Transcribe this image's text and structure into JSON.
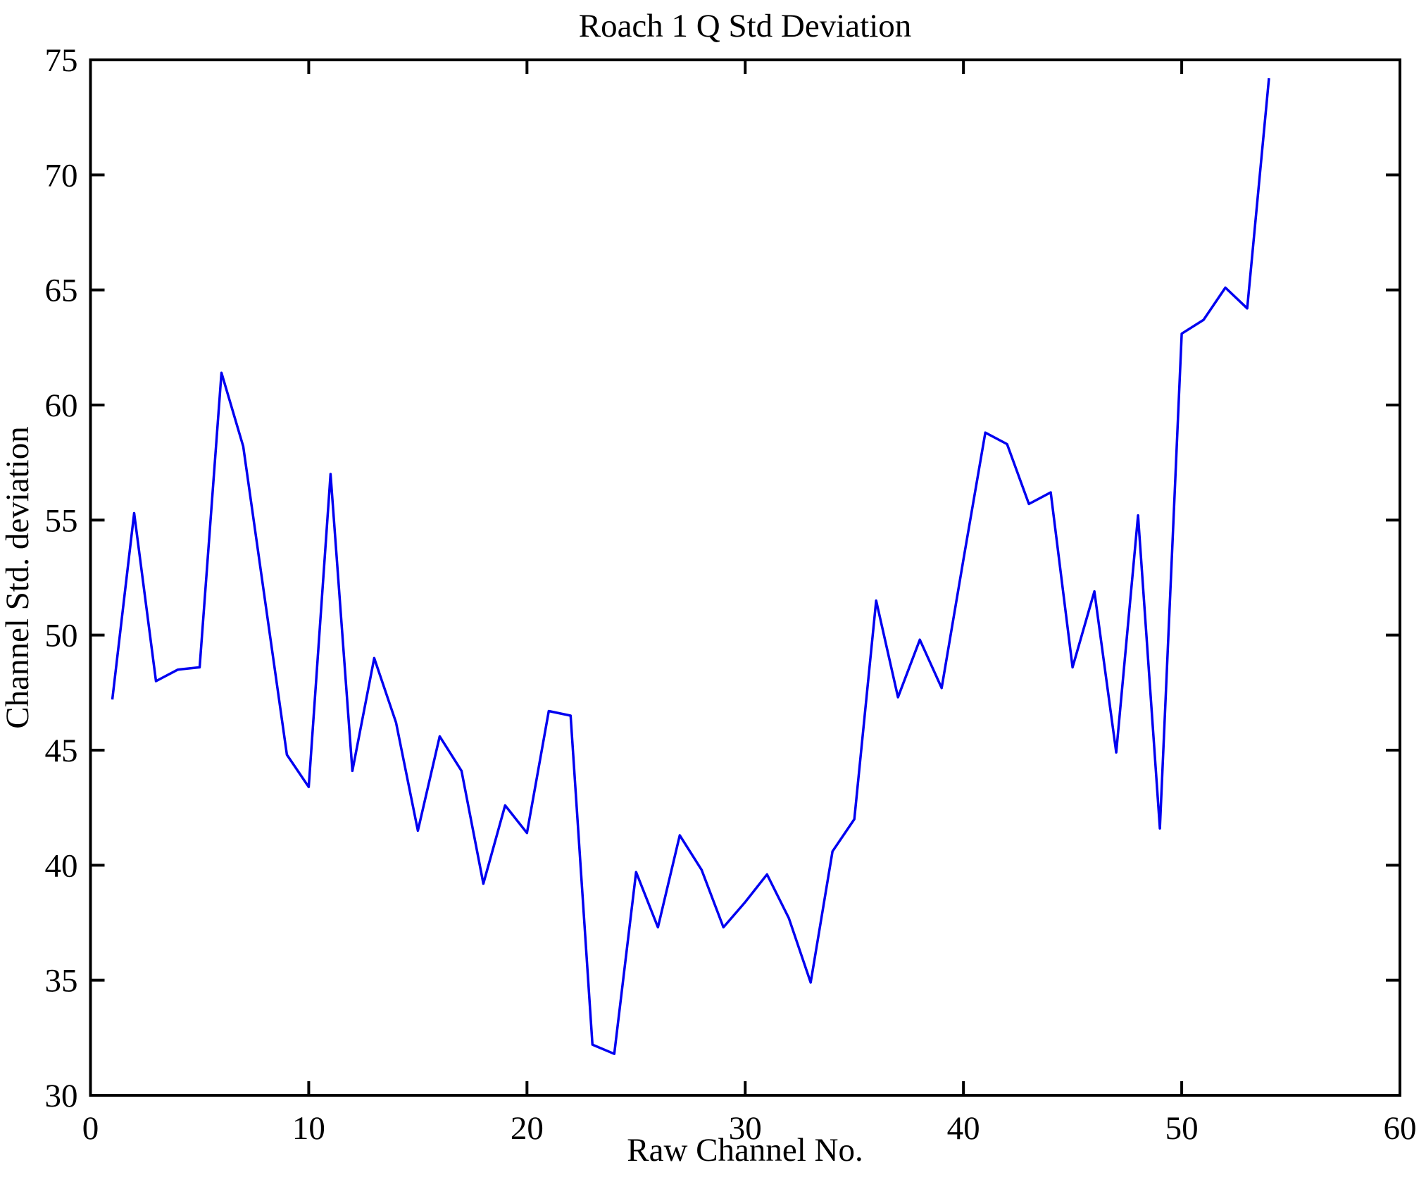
{
  "figure": {
    "background": "#ffffff",
    "axis_color": "#000000",
    "text_color": "#000000"
  },
  "chart_data": {
    "type": "line",
    "title": "Roach 1 Q Std Deviation",
    "xlabel": "Raw Channel No.",
    "ylabel": "Channel Std. deviation",
    "xlim": [
      0,
      60
    ],
    "ylim": [
      30,
      75
    ],
    "x_ticks": [
      0,
      10,
      20,
      30,
      40,
      50,
      60
    ],
    "y_ticks": [
      30,
      35,
      40,
      45,
      50,
      55,
      60,
      65,
      70,
      75
    ],
    "grid": false,
    "legend": "none",
    "line_color": "#0000f0",
    "series": [
      {
        "name": "Channel Std. deviation",
        "x": [
          1,
          2,
          3,
          4,
          5,
          6,
          7,
          8,
          9,
          10,
          11,
          12,
          13,
          14,
          15,
          16,
          17,
          18,
          19,
          20,
          21,
          22,
          23,
          24,
          25,
          26,
          27,
          28,
          29,
          30,
          31,
          32,
          33,
          34,
          35,
          36,
          37,
          38,
          39,
          40,
          41,
          42,
          43,
          44,
          45,
          46,
          47,
          48,
          49,
          50,
          51,
          52,
          53,
          54
        ],
        "y": [
          47.2,
          55.3,
          48.0,
          48.5,
          48.6,
          61.4,
          58.2,
          51.5,
          44.8,
          43.4,
          57.0,
          44.1,
          49.0,
          46.2,
          41.5,
          45.6,
          44.1,
          39.2,
          42.6,
          41.4,
          46.7,
          46.5,
          32.2,
          31.8,
          39.7,
          37.3,
          41.3,
          39.8,
          37.3,
          38.4,
          39.6,
          37.7,
          34.9,
          40.6,
          42.0,
          51.5,
          47.3,
          49.8,
          47.7,
          53.3,
          58.8,
          58.3,
          55.7,
          56.2,
          48.6,
          51.9,
          44.9,
          55.2,
          41.6,
          63.1,
          63.7,
          65.1,
          64.2,
          74.2
        ]
      }
    ]
  }
}
